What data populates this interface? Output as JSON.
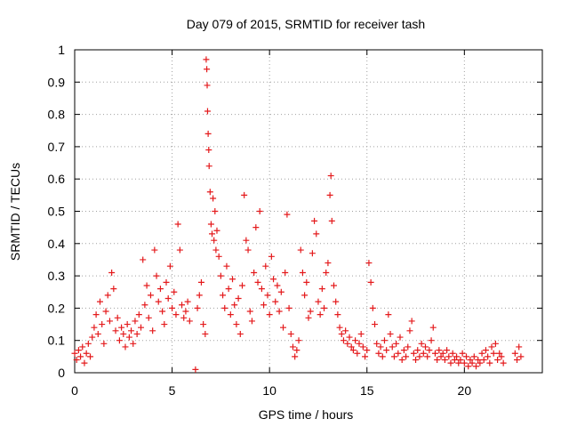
{
  "chart_data": {
    "type": "scatter",
    "title": "Day 079 of 2015, SRMTID for receiver tash",
    "xlabel": "GPS time / hours",
    "ylabel": "SRMTID / TECUs",
    "xlim": [
      0,
      24
    ],
    "ylim": [
      0,
      1
    ],
    "xticks": [
      0,
      5,
      10,
      15,
      20
    ],
    "yticks": [
      0,
      0.1,
      0.2,
      0.3,
      0.4,
      0.5,
      0.6,
      0.7,
      0.8,
      0.9,
      1
    ],
    "grid": true,
    "marker": "plus",
    "color": "#e41a1c",
    "series": [
      {
        "name": "SRMTID",
        "points": [
          [
            0.0,
            0.06
          ],
          [
            0.1,
            0.04
          ],
          [
            0.2,
            0.07
          ],
          [
            0.3,
            0.05
          ],
          [
            0.4,
            0.08
          ],
          [
            0.5,
            0.03
          ],
          [
            0.6,
            0.06
          ],
          [
            0.7,
            0.09
          ],
          [
            0.8,
            0.05
          ],
          [
            0.9,
            0.11
          ],
          [
            1.0,
            0.14
          ],
          [
            1.1,
            0.18
          ],
          [
            1.2,
            0.12
          ],
          [
            1.3,
            0.22
          ],
          [
            1.4,
            0.15
          ],
          [
            1.5,
            0.09
          ],
          [
            1.6,
            0.19
          ],
          [
            1.7,
            0.24
          ],
          [
            1.8,
            0.16
          ],
          [
            1.9,
            0.31
          ],
          [
            2.0,
            0.26
          ],
          [
            2.1,
            0.13
          ],
          [
            2.2,
            0.17
          ],
          [
            2.3,
            0.1
          ],
          [
            2.4,
            0.14
          ],
          [
            2.5,
            0.12
          ],
          [
            2.6,
            0.08
          ],
          [
            2.7,
            0.15
          ],
          [
            2.8,
            0.11
          ],
          [
            2.9,
            0.13
          ],
          [
            3.0,
            0.09
          ],
          [
            3.1,
            0.16
          ],
          [
            3.2,
            0.12
          ],
          [
            3.3,
            0.18
          ],
          [
            3.4,
            0.14
          ],
          [
            3.5,
            0.35
          ],
          [
            3.6,
            0.21
          ],
          [
            3.7,
            0.27
          ],
          [
            3.8,
            0.17
          ],
          [
            3.9,
            0.24
          ],
          [
            4.0,
            0.13
          ],
          [
            4.1,
            0.38
          ],
          [
            4.2,
            0.3
          ],
          [
            4.3,
            0.22
          ],
          [
            4.4,
            0.26
          ],
          [
            4.5,
            0.19
          ],
          [
            4.6,
            0.15
          ],
          [
            4.7,
            0.28
          ],
          [
            4.8,
            0.23
          ],
          [
            4.9,
            0.33
          ],
          [
            5.0,
            0.2
          ],
          [
            5.1,
            0.25
          ],
          [
            5.2,
            0.18
          ],
          [
            5.3,
            0.46
          ],
          [
            5.4,
            0.38
          ],
          [
            5.5,
            0.21
          ],
          [
            5.6,
            0.17
          ],
          [
            5.7,
            0.19
          ],
          [
            5.8,
            0.22
          ],
          [
            5.9,
            0.16
          ],
          [
            6.2,
            0.01
          ],
          [
            6.3,
            0.2
          ],
          [
            6.4,
            0.24
          ],
          [
            6.5,
            0.28
          ],
          [
            6.6,
            0.15
          ],
          [
            6.7,
            0.12
          ],
          [
            6.75,
            0.97
          ],
          [
            6.78,
            0.94
          ],
          [
            6.8,
            0.89
          ],
          [
            6.82,
            0.81
          ],
          [
            6.85,
            0.74
          ],
          [
            6.88,
            0.69
          ],
          [
            6.9,
            0.64
          ],
          [
            6.95,
            0.56
          ],
          [
            7.0,
            0.46
          ],
          [
            7.05,
            0.43
          ],
          [
            7.1,
            0.54
          ],
          [
            7.15,
            0.41
          ],
          [
            7.2,
            0.5
          ],
          [
            7.25,
            0.38
          ],
          [
            7.3,
            0.44
          ],
          [
            7.4,
            0.36
          ],
          [
            7.5,
            0.3
          ],
          [
            7.6,
            0.24
          ],
          [
            7.7,
            0.2
          ],
          [
            7.8,
            0.33
          ],
          [
            7.9,
            0.26
          ],
          [
            8.0,
            0.18
          ],
          [
            8.1,
            0.29
          ],
          [
            8.2,
            0.21
          ],
          [
            8.3,
            0.15
          ],
          [
            8.4,
            0.23
          ],
          [
            8.5,
            0.12
          ],
          [
            8.6,
            0.27
          ],
          [
            8.7,
            0.55
          ],
          [
            8.8,
            0.41
          ],
          [
            8.9,
            0.38
          ],
          [
            9.0,
            0.19
          ],
          [
            9.1,
            0.16
          ],
          [
            9.2,
            0.31
          ],
          [
            9.3,
            0.45
          ],
          [
            9.4,
            0.28
          ],
          [
            9.5,
            0.5
          ],
          [
            9.6,
            0.26
          ],
          [
            9.7,
            0.21
          ],
          [
            9.8,
            0.33
          ],
          [
            9.9,
            0.24
          ],
          [
            10.0,
            0.18
          ],
          [
            10.1,
            0.36
          ],
          [
            10.2,
            0.29
          ],
          [
            10.3,
            0.22
          ],
          [
            10.4,
            0.27
          ],
          [
            10.5,
            0.19
          ],
          [
            10.6,
            0.25
          ],
          [
            10.7,
            0.14
          ],
          [
            10.8,
            0.31
          ],
          [
            10.9,
            0.49
          ],
          [
            11.0,
            0.2
          ],
          [
            11.1,
            0.12
          ],
          [
            11.2,
            0.08
          ],
          [
            11.3,
            0.05
          ],
          [
            11.4,
            0.07
          ],
          [
            11.5,
            0.1
          ],
          [
            11.6,
            0.38
          ],
          [
            11.7,
            0.31
          ],
          [
            11.8,
            0.24
          ],
          [
            11.9,
            0.28
          ],
          [
            12.0,
            0.17
          ],
          [
            12.1,
            0.19
          ],
          [
            12.2,
            0.37
          ],
          [
            12.3,
            0.47
          ],
          [
            12.4,
            0.43
          ],
          [
            12.5,
            0.22
          ],
          [
            12.6,
            0.18
          ],
          [
            12.7,
            0.26
          ],
          [
            12.8,
            0.2
          ],
          [
            12.9,
            0.31
          ],
          [
            13.0,
            0.34
          ],
          [
            13.1,
            0.55
          ],
          [
            13.15,
            0.61
          ],
          [
            13.2,
            0.47
          ],
          [
            13.3,
            0.27
          ],
          [
            13.4,
            0.22
          ],
          [
            13.5,
            0.18
          ],
          [
            13.6,
            0.14
          ],
          [
            13.7,
            0.12
          ],
          [
            13.8,
            0.1
          ],
          [
            13.9,
            0.13
          ],
          [
            14.0,
            0.09
          ],
          [
            14.1,
            0.11
          ],
          [
            14.2,
            0.08
          ],
          [
            14.3,
            0.07
          ],
          [
            14.4,
            0.1
          ],
          [
            14.5,
            0.06
          ],
          [
            14.6,
            0.09
          ],
          [
            14.7,
            0.12
          ],
          [
            14.8,
            0.08
          ],
          [
            14.9,
            0.05
          ],
          [
            15.0,
            0.07
          ],
          [
            15.1,
            0.34
          ],
          [
            15.2,
            0.28
          ],
          [
            15.3,
            0.2
          ],
          [
            15.4,
            0.15
          ],
          [
            15.5,
            0.09
          ],
          [
            15.6,
            0.06
          ],
          [
            15.7,
            0.08
          ],
          [
            15.8,
            0.05
          ],
          [
            15.9,
            0.1
          ],
          [
            16.0,
            0.07
          ],
          [
            16.1,
            0.18
          ],
          [
            16.2,
            0.12
          ],
          [
            16.3,
            0.08
          ],
          [
            16.4,
            0.05
          ],
          [
            16.5,
            0.09
          ],
          [
            16.6,
            0.06
          ],
          [
            16.7,
            0.11
          ],
          [
            16.8,
            0.04
          ],
          [
            16.9,
            0.07
          ],
          [
            17.0,
            0.05
          ],
          [
            17.1,
            0.08
          ],
          [
            17.2,
            0.13
          ],
          [
            17.3,
            0.16
          ],
          [
            17.4,
            0.06
          ],
          [
            17.5,
            0.04
          ],
          [
            17.6,
            0.07
          ],
          [
            17.7,
            0.05
          ],
          [
            17.8,
            0.09
          ],
          [
            17.9,
            0.06
          ],
          [
            18.0,
            0.08
          ],
          [
            18.1,
            0.05
          ],
          [
            18.2,
            0.07
          ],
          [
            18.3,
            0.1
          ],
          [
            18.4,
            0.14
          ],
          [
            18.5,
            0.06
          ],
          [
            18.6,
            0.04
          ],
          [
            18.7,
            0.07
          ],
          [
            18.8,
            0.05
          ],
          [
            18.9,
            0.06
          ],
          [
            19.0,
            0.04
          ],
          [
            19.1,
            0.07
          ],
          [
            19.2,
            0.05
          ],
          [
            19.3,
            0.03
          ],
          [
            19.4,
            0.06
          ],
          [
            19.5,
            0.04
          ],
          [
            19.6,
            0.05
          ],
          [
            19.7,
            0.03
          ],
          [
            19.8,
            0.04
          ],
          [
            19.9,
            0.06
          ],
          [
            20.0,
            0.03
          ],
          [
            20.1,
            0.05
          ],
          [
            20.2,
            0.02
          ],
          [
            20.3,
            0.04
          ],
          [
            20.4,
            0.03
          ],
          [
            20.5,
            0.05
          ],
          [
            20.6,
            0.02
          ],
          [
            20.7,
            0.04
          ],
          [
            20.8,
            0.03
          ],
          [
            20.9,
            0.06
          ],
          [
            21.0,
            0.04
          ],
          [
            21.1,
            0.07
          ],
          [
            21.2,
            0.05
          ],
          [
            21.3,
            0.03
          ],
          [
            21.4,
            0.08
          ],
          [
            21.5,
            0.06
          ],
          [
            21.6,
            0.09
          ],
          [
            21.7,
            0.04
          ],
          [
            21.8,
            0.06
          ],
          [
            21.9,
            0.05
          ],
          [
            22.0,
            0.03
          ],
          [
            22.6,
            0.06
          ],
          [
            22.7,
            0.04
          ],
          [
            22.8,
            0.08
          ],
          [
            22.9,
            0.05
          ]
        ]
      }
    ]
  }
}
